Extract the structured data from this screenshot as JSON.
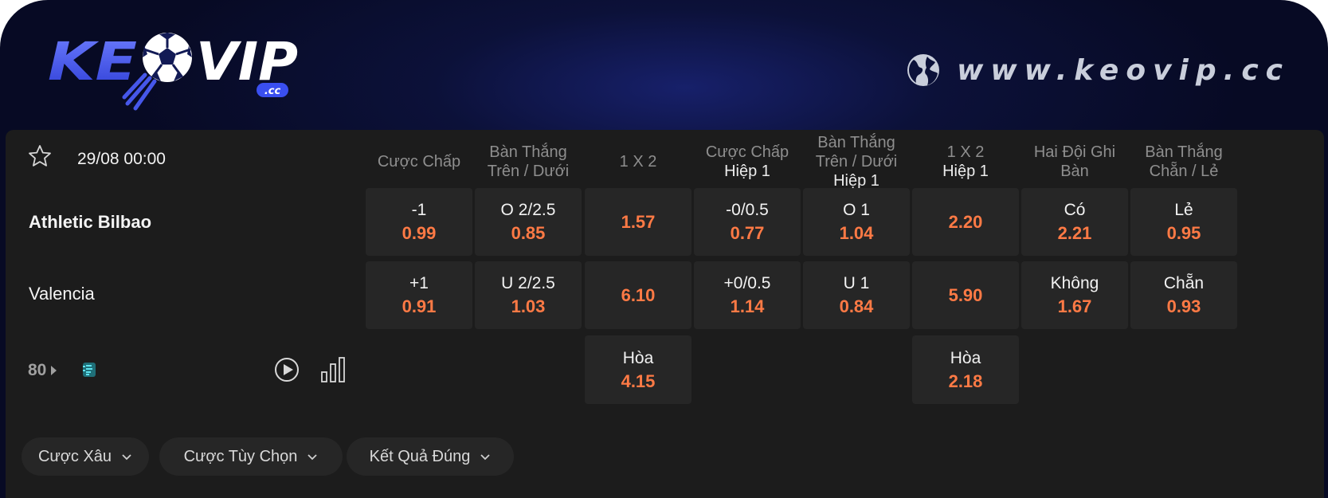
{
  "header": {
    "logo_text": "KEOVIP",
    "logo_suffix": ".cc",
    "website": "www.keovip.cc",
    "globe_icon": "globe-icon"
  },
  "match": {
    "kickoff": "29/08 00:00",
    "home": "Athletic Bilbao",
    "away": "Valencia",
    "more_count": "80"
  },
  "columns": [
    {
      "l1": "Cược Chấp",
      "l2": "",
      "l3": ""
    },
    {
      "l1": "Bàn Thắng",
      "l2": "Trên / Dưới",
      "l3": ""
    },
    {
      "l1": "1 X 2",
      "l2": "",
      "l3": ""
    },
    {
      "l1": "Cược Chấp",
      "l2": "Hiệp 1",
      "l3": ""
    },
    {
      "l1": "Bàn Thắng",
      "l2": "Trên / Dưới",
      "l3": "Hiệp 1"
    },
    {
      "l1": "1 X 2",
      "l2": "Hiệp 1",
      "l3": ""
    },
    {
      "l1": "Hai Đội Ghi",
      "l2": "Bàn",
      "l3": ""
    },
    {
      "l1": "Bàn Thắng",
      "l2": "Chẵn / Lẻ",
      "l3": ""
    }
  ],
  "odds": {
    "home": [
      {
        "label": "-1",
        "odd": "0.99"
      },
      {
        "label": "O 2/2.5",
        "odd": "0.85"
      },
      {
        "label": "",
        "odd": "1.57"
      },
      {
        "label": "-0/0.5",
        "odd": "0.77"
      },
      {
        "label": "O 1",
        "odd": "1.04"
      },
      {
        "label": "",
        "odd": "2.20"
      },
      {
        "label": "Có",
        "odd": "2.21"
      },
      {
        "label": "Lẻ",
        "odd": "0.95"
      }
    ],
    "away": [
      {
        "label": "+1",
        "odd": "0.91"
      },
      {
        "label": "U 2/2.5",
        "odd": "1.03"
      },
      {
        "label": "",
        "odd": "6.10"
      },
      {
        "label": "+0/0.5",
        "odd": "1.14"
      },
      {
        "label": "U 1",
        "odd": "0.84"
      },
      {
        "label": "",
        "odd": "5.90"
      },
      {
        "label": "Không",
        "odd": "1.67"
      },
      {
        "label": "Chẵn",
        "odd": "0.93"
      }
    ],
    "draw": [
      {
        "label": "Hòa",
        "odd": "4.15"
      },
      {
        "label": "Hòa",
        "odd": "2.18"
      }
    ]
  },
  "bet_options": [
    "Cược Xâu",
    "Cược Tùy Chọn",
    "Kết Quả Đúng"
  ],
  "colors": {
    "odd": "#ff7a45",
    "panel": "#1c1c1c",
    "cell": "#262626",
    "logo_blue": "#3a4ff0"
  }
}
